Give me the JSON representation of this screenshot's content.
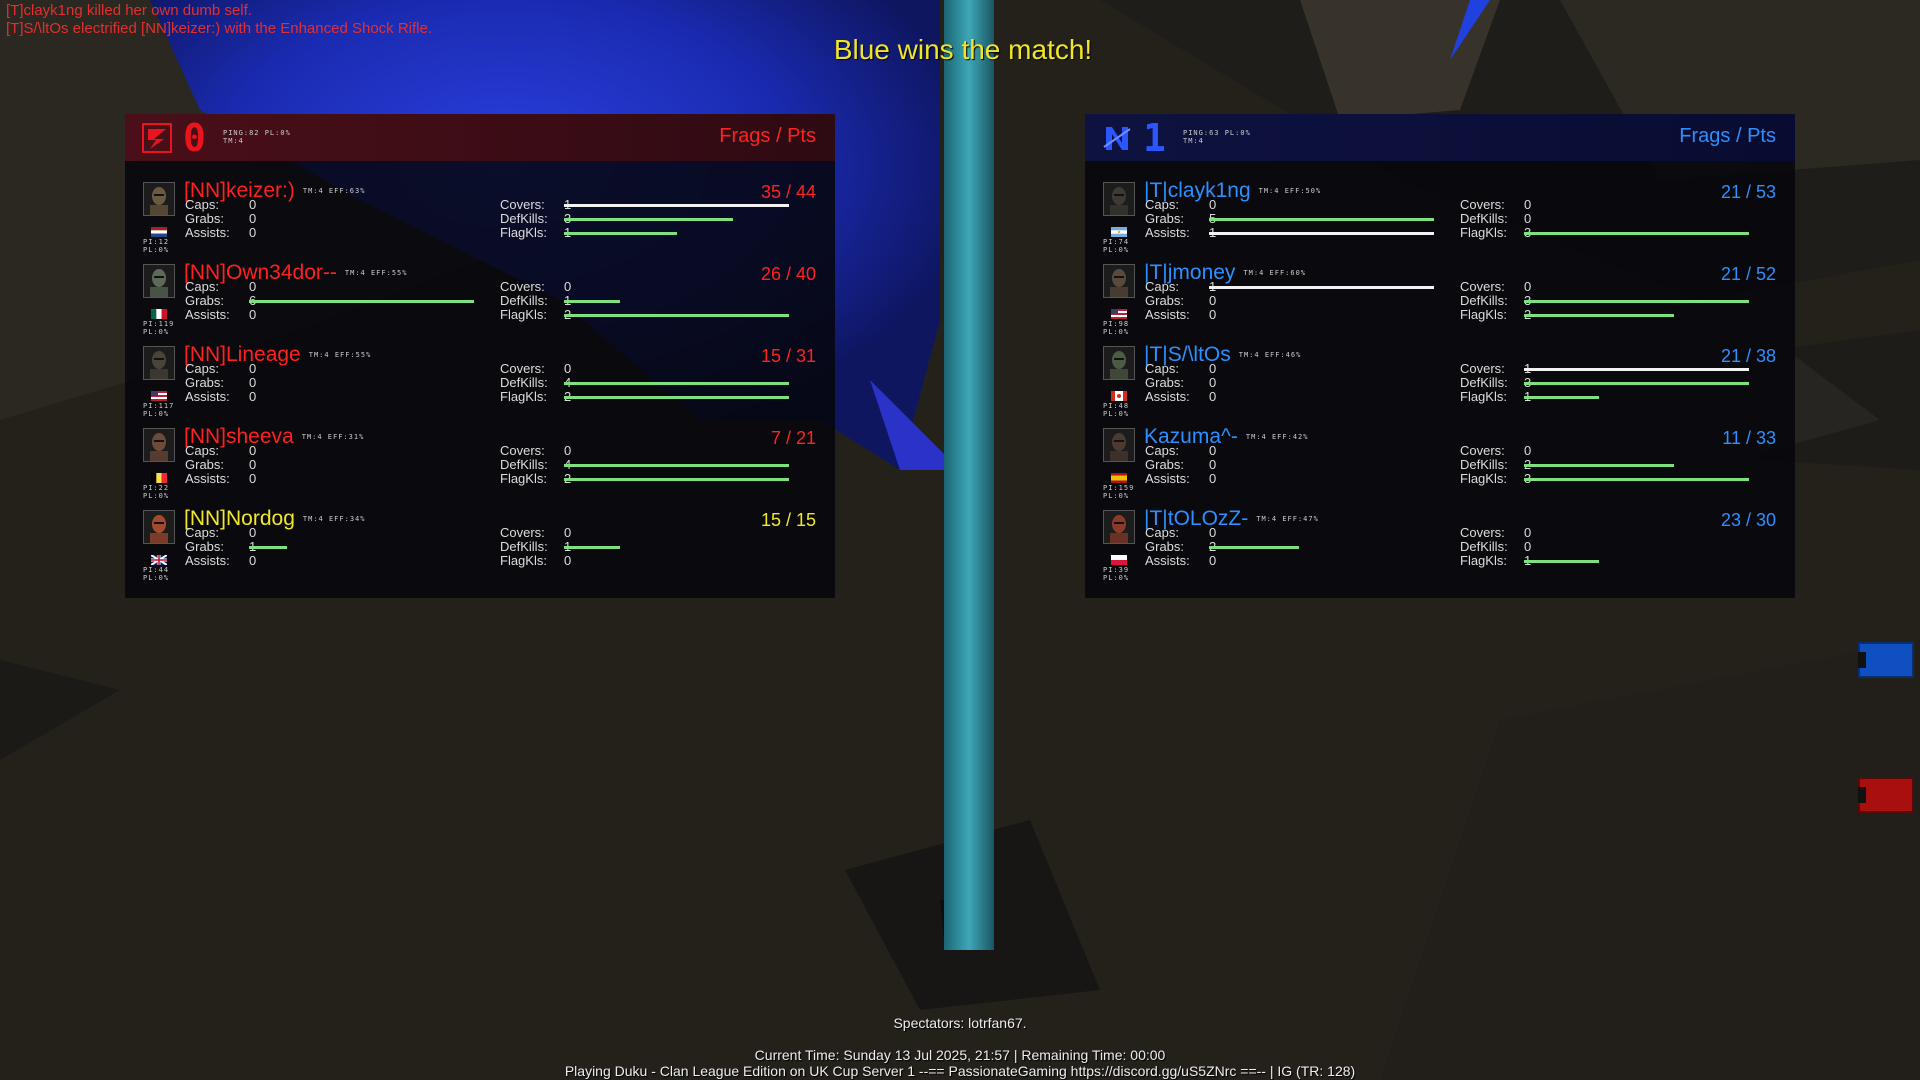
{
  "killfeed": [
    "[T]clayk1ng killed her own dumb self.",
    "[T]S/\\ltOs electrified [NN]keizer:) with the Enhanced Shock Rifle."
  ],
  "winner_text": "Blue wins the match!",
  "header_label": "Frags / Pts",
  "teams": {
    "red": {
      "score": "0",
      "meta1": "PING:82 PL:0%",
      "meta2": "TM:4",
      "color": "#e8141e",
      "players": [
        {
          "name": "[NN]keizer:)",
          "tag": "TM:4 EFF:63%",
          "score": "35 / 44",
          "pi1": "PI:12",
          "pi2": "PL:0%",
          "caps": "0",
          "grabs": "0",
          "assists": "0",
          "covers": "1",
          "defkills": "3",
          "flagkls": "1",
          "self": false,
          "flag": "nl"
        },
        {
          "name": "[NN]Own34dor--",
          "tag": "TM:4 EFF:55%",
          "score": "26 / 40",
          "pi1": "PI:119",
          "pi2": "PL:0%",
          "caps": "0",
          "grabs": "6",
          "assists": "0",
          "covers": "0",
          "defkills": "1",
          "flagkls": "2",
          "self": false,
          "flag": "mx"
        },
        {
          "name": "[NN]Lineage",
          "tag": "TM:4 EFF:55%",
          "score": "15 / 31",
          "pi1": "PI:117",
          "pi2": "PL:0%",
          "caps": "0",
          "grabs": "0",
          "assists": "0",
          "covers": "0",
          "defkills": "4",
          "flagkls": "2",
          "self": false,
          "flag": "us"
        },
        {
          "name": "[NN]sheeva",
          "tag": "TM:4 EFF:31%",
          "score": "7 / 21",
          "pi1": "PI:22",
          "pi2": "PL:0%",
          "caps": "0",
          "grabs": "0",
          "assists": "0",
          "covers": "0",
          "defkills": "4",
          "flagkls": "2",
          "self": false,
          "flag": "be"
        },
        {
          "name": "[NN]Nordog",
          "tag": "TM:4 EFF:34%",
          "score": "15 / 15",
          "pi1": "PI:44",
          "pi2": "PL:0%",
          "caps": "0",
          "grabs": "1",
          "assists": "0",
          "covers": "0",
          "defkills": "1",
          "flagkls": "0",
          "self": true,
          "flag": "gb"
        }
      ]
    },
    "blue": {
      "score": "1",
      "meta1": "PING:63 PL:0%",
      "meta2": "TM:4",
      "color": "#2a56ff",
      "players": [
        {
          "name": "|T|clayk1ng",
          "tag": "TM:4 EFF:50%",
          "score": "21 / 53",
          "pi1": "PI:74",
          "pi2": "PL:0%",
          "caps": "0",
          "grabs": "5",
          "assists": "1",
          "covers": "0",
          "defkills": "0",
          "flagkls": "3",
          "self": false,
          "flag": "ar"
        },
        {
          "name": "|T|jmoney",
          "tag": "TM:4 EFF:60%",
          "score": "21 / 52",
          "pi1": "PI:98",
          "pi2": "PL:0%",
          "caps": "1",
          "grabs": "0",
          "assists": "0",
          "covers": "0",
          "defkills": "3",
          "flagkls": "2",
          "self": false,
          "flag": "us"
        },
        {
          "name": "|T|S/\\ltOs",
          "tag": "TM:4 EFF:46%",
          "score": "21 / 38",
          "pi1": "PI:48",
          "pi2": "PL:0%",
          "caps": "0",
          "grabs": "0",
          "assists": "0",
          "covers": "1",
          "defkills": "3",
          "flagkls": "1",
          "self": false,
          "flag": "ca"
        },
        {
          "name": "Kazuma^-",
          "tag": "TM:4 EFF:42%",
          "score": "11 / 33",
          "pi1": "PI:159",
          "pi2": "PL:0%",
          "caps": "0",
          "grabs": "0",
          "assists": "0",
          "covers": "0",
          "defkills": "2",
          "flagkls": "3",
          "self": false,
          "flag": "es"
        },
        {
          "name": "|T|tOLOzZ-",
          "tag": "TM:4 EFF:47%",
          "score": "23 / 30",
          "pi1": "PI:39",
          "pi2": "PL:0%",
          "caps": "0",
          "grabs": "2",
          "assists": "0",
          "covers": "0",
          "defkills": "0",
          "flagkls": "1",
          "self": false,
          "flag": "pl"
        }
      ]
    }
  },
  "stat_labels": {
    "caps": "Caps:",
    "grabs": "Grabs:",
    "assists": "Assists:",
    "covers": "Covers:",
    "defkills": "DefKills:",
    "flagkls": "FlagKls:"
  },
  "footer": {
    "spectators": "Spectators: lotrfan67.",
    "time": "Current Time: Sunday 13 Jul 2025, 21:57 | Remaining Time: 00:00",
    "server": "Playing Duku - Clan League Edition on UK Cup Server 1 --== PassionateGaming https://discord.gg/uS5ZNrc ==-- | IG (TR: 128)"
  }
}
